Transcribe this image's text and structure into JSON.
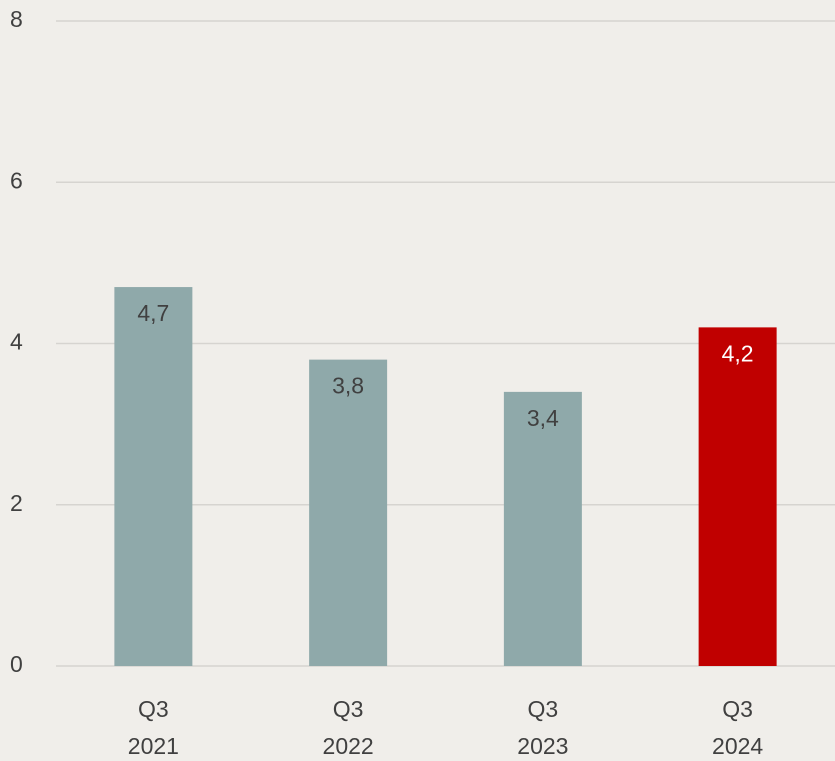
{
  "chart_data": {
    "type": "bar",
    "categories": [
      [
        "Q3",
        "2021"
      ],
      [
        "Q3",
        "2022"
      ],
      [
        "Q3",
        "2023"
      ],
      [
        "Q3",
        "2024"
      ]
    ],
    "values": [
      4.7,
      3.8,
      3.4,
      4.2
    ],
    "value_labels": [
      "4,7",
      "3,8",
      "3,4",
      "4,2"
    ],
    "colors": [
      "#8fa9aa",
      "#8fa9aa",
      "#8fa9aa",
      "#c00000"
    ],
    "label_colors": [
      "#404040",
      "#404040",
      "#404040",
      "#ffffff"
    ],
    "ylim": [
      0,
      8
    ],
    "yticks": [
      0,
      2,
      4,
      6,
      8
    ],
    "grid": true
  }
}
